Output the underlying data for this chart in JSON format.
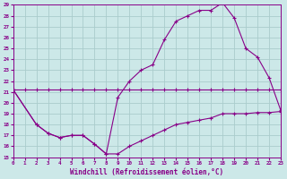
{
  "xlabel": "Windchill (Refroidissement éolien,°C)",
  "bg_color": "#cce8e8",
  "grid_color": "#aacccc",
  "line_color": "#880088",
  "xmin": 0,
  "xmax": 23,
  "ymin": 15,
  "ymax": 29,
  "line1_x": [
    0,
    1,
    2,
    3,
    4,
    5,
    6,
    7,
    8,
    9,
    10,
    11,
    12,
    13,
    14,
    15,
    16,
    17,
    18,
    19,
    20,
    21,
    22,
    23
  ],
  "line1_y": [
    21.2,
    21.2,
    21.2,
    21.2,
    21.2,
    21.2,
    21.2,
    21.2,
    21.2,
    21.2,
    21.2,
    21.2,
    21.2,
    21.2,
    21.2,
    21.2,
    21.2,
    21.2,
    21.2,
    21.2,
    21.2,
    21.2,
    21.2,
    21.2
  ],
  "line2_x": [
    0,
    2,
    3,
    4,
    5,
    6,
    7,
    8,
    9,
    10,
    11,
    12,
    13,
    14,
    15,
    16,
    17,
    18,
    19,
    20,
    21,
    22,
    23
  ],
  "line2_y": [
    21.2,
    18.0,
    17.2,
    16.8,
    17.0,
    17.0,
    16.2,
    15.3,
    15.3,
    16.0,
    16.5,
    17.0,
    17.5,
    18.0,
    18.2,
    18.4,
    18.6,
    19.0,
    19.0,
    19.0,
    19.1,
    19.1,
    19.2
  ],
  "line3_x": [
    0,
    2,
    3,
    4,
    5,
    6,
    7,
    8,
    9,
    10,
    11,
    12,
    13,
    14,
    15,
    16,
    17,
    18,
    19,
    20,
    21,
    22,
    23
  ],
  "line3_y": [
    21.2,
    18.0,
    17.2,
    16.8,
    17.0,
    17.0,
    16.2,
    15.3,
    20.5,
    22.0,
    23.0,
    23.5,
    25.8,
    27.5,
    28.0,
    28.5,
    28.5,
    29.2,
    27.8,
    25.0,
    24.2,
    22.3,
    19.3
  ],
  "xtick_labels": [
    "0",
    "1",
    "2",
    "3",
    "4",
    "5",
    "6",
    "7",
    "8",
    "9",
    "10",
    "11",
    "12",
    "13",
    "14",
    "15",
    "16",
    "17",
    "18",
    "19",
    "20",
    "21",
    "22",
    "23"
  ]
}
